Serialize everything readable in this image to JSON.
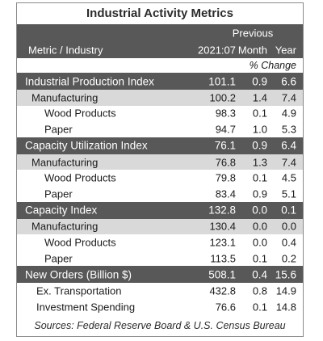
{
  "title": "Industrial Activity Metrics",
  "header": {
    "previous": "Previous",
    "metric_industry": "Metric / Industry",
    "period": "2021:07",
    "month": "Month",
    "year": "Year",
    "pct_change": "% Change"
  },
  "sections": [
    {
      "main": {
        "label": "Industrial Production Index",
        "value": "101.1",
        "month": "0.9",
        "year": "6.6"
      },
      "sub": {
        "label": "Manufacturing",
        "value": "100.2",
        "month": "1.4",
        "year": "7.4"
      },
      "items": [
        {
          "label": "Wood Products",
          "value": "98.3",
          "month": "0.1",
          "year": "4.9"
        },
        {
          "label": "Paper",
          "value": "94.7",
          "month": "1.0",
          "year": "5.3"
        }
      ]
    },
    {
      "main": {
        "label": "Capacity Utilization Index",
        "value": "76.1",
        "month": "0.9",
        "year": "6.4"
      },
      "sub": {
        "label": "Manufacturing",
        "value": "76.8",
        "month": "1.3",
        "year": "7.4"
      },
      "items": [
        {
          "label": "Wood Products",
          "value": "79.8",
          "month": "0.1",
          "year": "4.5"
        },
        {
          "label": "Paper",
          "value": "83.4",
          "month": "0.9",
          "year": "5.1"
        }
      ]
    },
    {
      "main": {
        "label": "Capacity Index",
        "value": "132.8",
        "month": "0.0",
        "year": "0.1"
      },
      "sub": {
        "label": "Manufacturing",
        "value": "130.4",
        "month": "0.0",
        "year": "0.0"
      },
      "items": [
        {
          "label": "Wood Products",
          "value": "123.1",
          "month": "0.0",
          "year": "0.4"
        },
        {
          "label": "Paper",
          "value": "113.5",
          "month": "0.1",
          "year": "0.2"
        }
      ]
    },
    {
      "main": {
        "label": "New Orders (Billion $)",
        "value": "508.1",
        "month": "0.4",
        "year": "15.6"
      },
      "items": [
        {
          "label": "Ex. Transportation",
          "value": "432.8",
          "month": "0.8",
          "year": "14.9"
        },
        {
          "label": "Investment Spending",
          "value": "76.6",
          "month": "0.1",
          "year": "14.8"
        }
      ]
    }
  ],
  "source": "Sources: Federal Reserve Board & U.S. Census Bureau"
}
